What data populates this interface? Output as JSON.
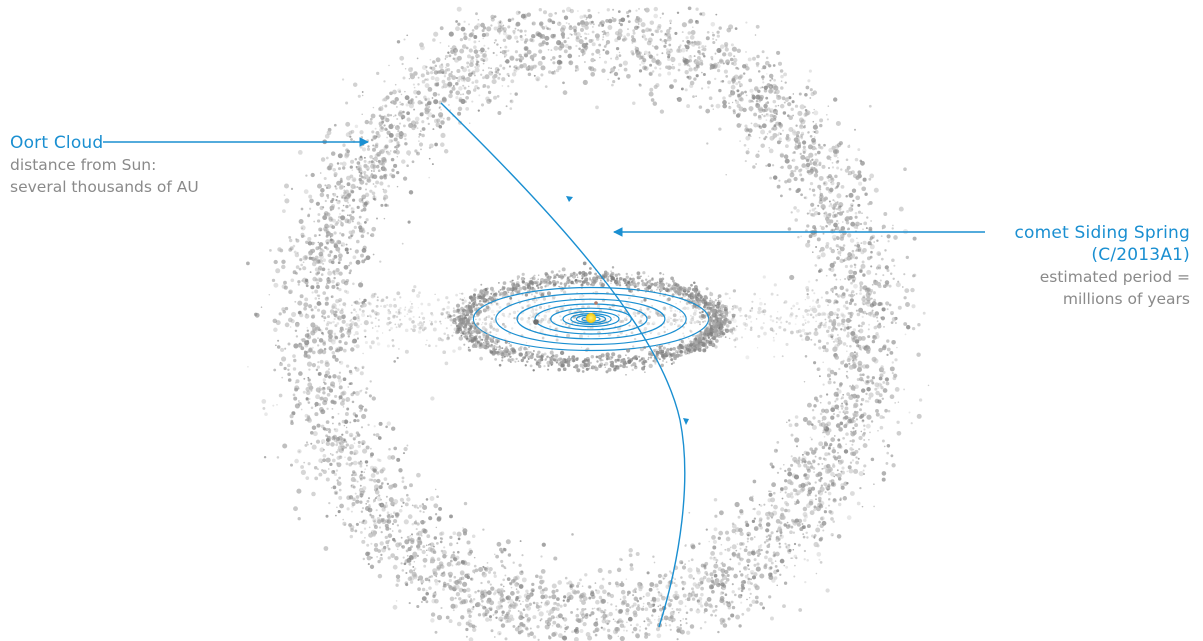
{
  "oort": {
    "title": "Oort Cloud",
    "line1": "distance from Sun:",
    "line2": "several thousands of AU"
  },
  "comet": {
    "title": "comet Siding Spring",
    "designation": "(C/2013A1)",
    "line1": "estimated period =",
    "line2": "millions of years"
  },
  "colors": {
    "accent": "#1a8fd1",
    "cloud": "#9a9a9a",
    "text_muted": "#8a8a8a",
    "sun": "#f5c400"
  }
}
